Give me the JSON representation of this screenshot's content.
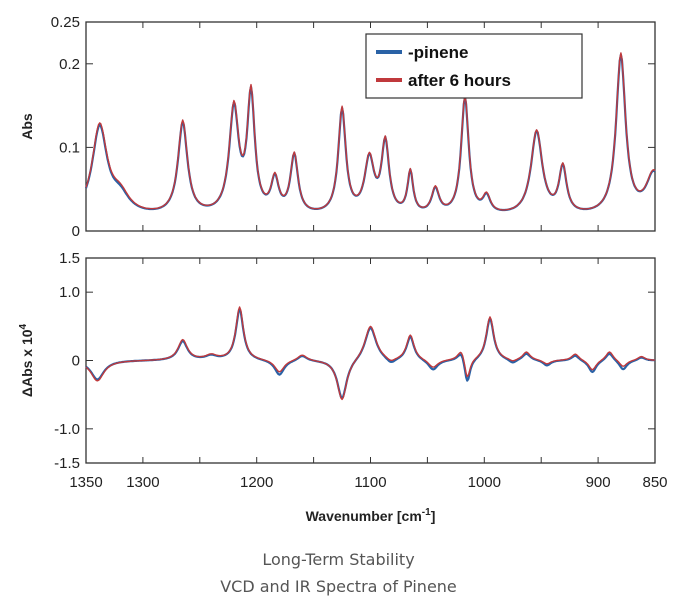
{
  "chart_data": [
    {
      "type": "line",
      "panel": "top",
      "ylabel": "Abs",
      "xlim": [
        1350,
        850
      ],
      "x_reversed": true,
      "ylim": [
        0,
        0.25
      ],
      "yticks": [
        "0.25",
        "0.2",
        "0.1",
        "0"
      ],
      "ytick_values": [
        0.25,
        0.2,
        0.1,
        0
      ],
      "legend": {
        "placement": "top-right",
        "entries": [
          "-pinene",
          "after 6 hours"
        ]
      },
      "series": [
        {
          "name": "-pinene",
          "color": "#2a62a6",
          "peaks": [
            [
              1338,
              0.105,
              8
            ],
            [
              1320,
              0.02,
              10
            ],
            [
              1265,
              0.11,
              5
            ],
            [
              1220,
              0.125,
              5
            ],
            [
              1205,
              0.14,
              4
            ],
            [
              1184,
              0.04,
              4
            ],
            [
              1167,
              0.07,
              4
            ],
            [
              1125,
              0.125,
              4
            ],
            [
              1101,
              0.065,
              5
            ],
            [
              1087,
              0.085,
              4
            ],
            [
              1065,
              0.05,
              3
            ],
            [
              1043,
              0.03,
              4
            ],
            [
              1017,
              0.14,
              4
            ],
            [
              998,
              0.02,
              4
            ],
            [
              954,
              0.1,
              6
            ],
            [
              931,
              0.055,
              4
            ],
            [
              880,
              0.19,
              5
            ],
            [
              851,
              0.05,
              8
            ]
          ],
          "baseline": 0.016
        },
        {
          "name": "after 6 hours",
          "color": "#c0393c",
          "peaks": [
            [
              1338,
              0.107,
              8
            ],
            [
              1320,
              0.022,
              10
            ],
            [
              1265,
              0.112,
              5
            ],
            [
              1220,
              0.127,
              5
            ],
            [
              1205,
              0.142,
              4
            ],
            [
              1184,
              0.041,
              4
            ],
            [
              1167,
              0.071,
              4
            ],
            [
              1125,
              0.127,
              4
            ],
            [
              1101,
              0.066,
              5
            ],
            [
              1087,
              0.086,
              4
            ],
            [
              1065,
              0.051,
              3
            ],
            [
              1043,
              0.031,
              4
            ],
            [
              1017,
              0.142,
              4
            ],
            [
              998,
              0.021,
              4
            ],
            [
              954,
              0.101,
              6
            ],
            [
              931,
              0.056,
              4
            ],
            [
              880,
              0.192,
              5
            ],
            [
              851,
              0.051,
              8
            ]
          ],
          "baseline": 0.016
        }
      ]
    },
    {
      "type": "line",
      "panel": "bottom",
      "ylabel": "ΔAbs x 10",
      "ylabel_exp": "4",
      "xlabel": "Wavenumber [cm",
      "xlabel_exp": "-1",
      "xlabel_end": "]",
      "xlim": [
        1350,
        850
      ],
      "x_reversed": true,
      "xticks": [
        "1350",
        "1300",
        "1200",
        "1100",
        "1000",
        "900",
        "850"
      ],
      "xtick_values": [
        1350,
        1300,
        1200,
        1100,
        1000,
        900,
        850
      ],
      "ylim": [
        -1.5,
        1.5
      ],
      "yticks": [
        "1.5",
        "1.0",
        "0",
        "-1.0",
        "-1.5"
      ],
      "ytick_values": [
        1.5,
        1.0,
        0,
        -1.0,
        -1.5
      ],
      "series": [
        {
          "name": "-pinene",
          "color": "#2a62a6",
          "peaks": [
            [
              1340,
              -0.28,
              7
            ],
            [
              1265,
              0.28,
              5
            ],
            [
              1240,
              0.06,
              6
            ],
            [
              1215,
              0.75,
              4
            ],
            [
              1180,
              -0.22,
              5
            ],
            [
              1160,
              0.08,
              5
            ],
            [
              1125,
              -0.58,
              5
            ],
            [
              1100,
              0.5,
              6
            ],
            [
              1082,
              -0.08,
              5
            ],
            [
              1065,
              0.35,
              4
            ],
            [
              1045,
              -0.15,
              5
            ],
            [
              1020,
              0.16,
              4
            ],
            [
              1015,
              -0.38,
              3
            ],
            [
              995,
              0.62,
              4
            ],
            [
              975,
              -0.06,
              4
            ],
            [
              963,
              0.1,
              4
            ],
            [
              945,
              -0.08,
              4
            ],
            [
              920,
              0.08,
              4
            ],
            [
              905,
              -0.18,
              4
            ],
            [
              890,
              0.12,
              4
            ],
            [
              878,
              -0.14,
              4
            ],
            [
              862,
              0.05,
              4
            ]
          ]
        },
        {
          "name": "after 6 hours",
          "color": "#c0393c",
          "peaks": [
            [
              1340,
              -0.3,
              7
            ],
            [
              1265,
              0.3,
              5
            ],
            [
              1240,
              0.07,
              6
            ],
            [
              1215,
              0.78,
              4
            ],
            [
              1180,
              -0.18,
              5
            ],
            [
              1160,
              0.09,
              5
            ],
            [
              1125,
              -0.6,
              5
            ],
            [
              1100,
              0.52,
              6
            ],
            [
              1082,
              -0.06,
              5
            ],
            [
              1065,
              0.37,
              4
            ],
            [
              1045,
              -0.12,
              5
            ],
            [
              1020,
              0.18,
              4
            ],
            [
              1015,
              -0.33,
              3
            ],
            [
              995,
              0.64,
              4
            ],
            [
              975,
              -0.04,
              4
            ],
            [
              963,
              0.12,
              4
            ],
            [
              945,
              -0.06,
              4
            ],
            [
              920,
              0.1,
              4
            ],
            [
              905,
              -0.15,
              4
            ],
            [
              890,
              0.14,
              4
            ],
            [
              878,
              -0.1,
              4
            ],
            [
              862,
              0.06,
              4
            ]
          ]
        }
      ]
    }
  ],
  "caption": {
    "line1": "Long-Term Stability",
    "line2": "VCD and IR Spectra of Pinene"
  }
}
